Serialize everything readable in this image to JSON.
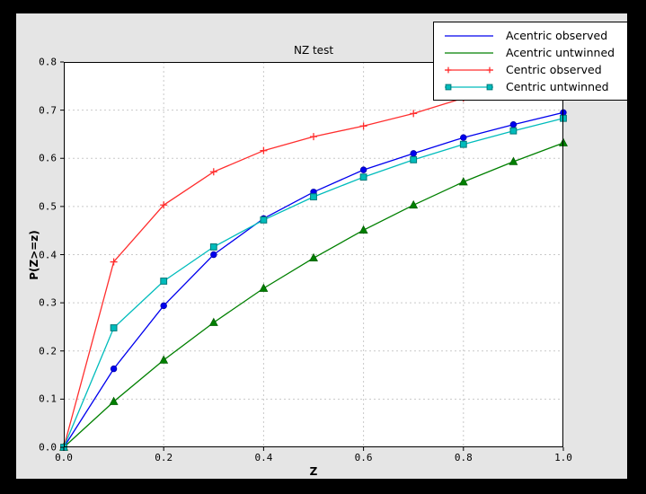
{
  "window": {
    "background": "#000000"
  },
  "figure": {
    "background": "#e5e5e5",
    "axes_background": "#ffffff",
    "axes_border_color": "#000000",
    "grid_color": "#c9c9c9"
  },
  "chart_data": {
    "type": "line",
    "title": "NZ test",
    "xlabel": "Z",
    "ylabel": "P(Z>=z)",
    "xlim": [
      0.0,
      1.0
    ],
    "ylim": [
      0.0,
      0.8
    ],
    "grid": true,
    "legend_position": "upper right",
    "xticks": [
      "0.0",
      "0.2",
      "0.4",
      "0.6",
      "0.8",
      "1.0"
    ],
    "yticks": [
      "0.0",
      "0.1",
      "0.2",
      "0.3",
      "0.4",
      "0.5",
      "0.6",
      "0.7",
      "0.8"
    ],
    "x": [
      0.0,
      0.1,
      0.2,
      0.3,
      0.4,
      0.5,
      0.6,
      0.7,
      0.8,
      0.9,
      1.0
    ],
    "series": [
      {
        "name": "Acentric observed",
        "color": "#0000ee",
        "edge": "#0000aa",
        "marker": "circle",
        "legend_marker": false,
        "values": [
          0.0,
          0.163,
          0.294,
          0.4,
          0.475,
          0.53,
          0.576,
          0.61,
          0.643,
          0.67,
          0.695
        ]
      },
      {
        "name": "Acentric untwinned",
        "color": "#008000",
        "edge": "#006000",
        "marker": "triangle",
        "legend_marker": false,
        "values": [
          0.0,
          0.095,
          0.181,
          0.259,
          0.33,
          0.393,
          0.451,
          0.503,
          0.551,
          0.593,
          0.632
        ]
      },
      {
        "name": "Centric observed",
        "color": "#ff2e2e",
        "edge": "#ff2e2e",
        "marker": "plus",
        "legend_marker": true,
        "values": [
          0.0,
          0.385,
          0.503,
          0.572,
          0.616,
          0.645,
          0.667,
          0.693,
          0.725,
          0.748,
          0.765
        ]
      },
      {
        "name": "Centric untwinned",
        "color": "#00bcbc",
        "edge": "#007878",
        "marker": "square",
        "legend_marker": true,
        "values": [
          0.0,
          0.248,
          0.345,
          0.416,
          0.472,
          0.52,
          0.561,
          0.597,
          0.629,
          0.657,
          0.683
        ]
      }
    ]
  }
}
